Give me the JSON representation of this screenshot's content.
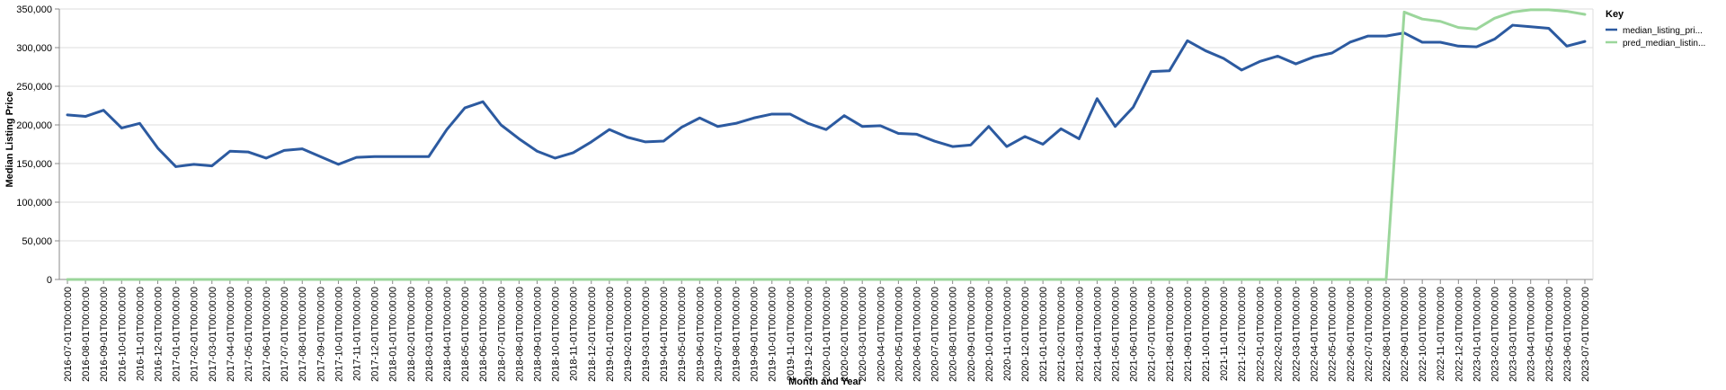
{
  "chart_data": {
    "type": "line",
    "title": "",
    "xlabel": "Month and Year",
    "ylabel": "Median Listing Price",
    "ylim": [
      0,
      350000
    ],
    "y_ticks": [
      "0",
      "50,000",
      "100,000",
      "150,000",
      "200,000",
      "250,000",
      "300,000",
      "350,000"
    ],
    "y_tick_values": [
      0,
      50000,
      100000,
      150000,
      200000,
      250000,
      300000,
      350000
    ],
    "legend_title": "Key",
    "legend_position": "right",
    "grid": true,
    "categories": [
      "2016-07-01T00:00:00",
      "2016-08-01T00:00:00",
      "2016-09-01T00:00:00",
      "2016-10-01T00:00:00",
      "2016-11-01T00:00:00",
      "2016-12-01T00:00:00",
      "2017-01-01T00:00:00",
      "2017-02-01T00:00:00",
      "2017-03-01T00:00:00",
      "2017-04-01T00:00:00",
      "2017-05-01T00:00:00",
      "2017-06-01T00:00:00",
      "2017-07-01T00:00:00",
      "2017-08-01T00:00:00",
      "2017-09-01T00:00:00",
      "2017-10-01T00:00:00",
      "2017-11-01T00:00:00",
      "2017-12-01T00:00:00",
      "2018-01-01T00:00:00",
      "2018-02-01T00:00:00",
      "2018-03-01T00:00:00",
      "2018-04-01T00:00:00",
      "2018-05-01T00:00:00",
      "2018-06-01T00:00:00",
      "2018-07-01T00:00:00",
      "2018-08-01T00:00:00",
      "2018-09-01T00:00:00",
      "2018-10-01T00:00:00",
      "2018-11-01T00:00:00",
      "2018-12-01T00:00:00",
      "2019-01-01T00:00:00",
      "2019-02-01T00:00:00",
      "2019-03-01T00:00:00",
      "2019-04-01T00:00:00",
      "2019-05-01T00:00:00",
      "2019-06-01T00:00:00",
      "2019-07-01T00:00:00",
      "2019-08-01T00:00:00",
      "2019-09-01T00:00:00",
      "2019-10-01T00:00:00",
      "2019-11-01T00:00:00",
      "2019-12-01T00:00:00",
      "2020-01-01T00:00:00",
      "2020-02-01T00:00:00",
      "2020-03-01T00:00:00",
      "2020-04-01T00:00:00",
      "2020-05-01T00:00:00",
      "2020-06-01T00:00:00",
      "2020-07-01T00:00:00",
      "2020-08-01T00:00:00",
      "2020-09-01T00:00:00",
      "2020-10-01T00:00:00",
      "2020-11-01T00:00:00",
      "2020-12-01T00:00:00",
      "2021-01-01T00:00:00",
      "2021-02-01T00:00:00",
      "2021-03-01T00:00:00",
      "2021-04-01T00:00:00",
      "2021-05-01T00:00:00",
      "2021-06-01T00:00:00",
      "2021-07-01T00:00:00",
      "2021-08-01T00:00:00",
      "2021-09-01T00:00:00",
      "2021-10-01T00:00:00",
      "2021-11-01T00:00:00",
      "2021-12-01T00:00:00",
      "2022-01-01T00:00:00",
      "2022-02-01T00:00:00",
      "2022-03-01T00:00:00",
      "2022-04-01T00:00:00",
      "2022-05-01T00:00:00",
      "2022-06-01T00:00:00",
      "2022-07-01T00:00:00",
      "2022-08-01T00:00:00",
      "2022-09-01T00:00:00",
      "2022-10-01T00:00:00",
      "2022-11-01T00:00:00",
      "2022-12-01T00:00:00",
      "2023-01-01T00:00:00",
      "2023-02-01T00:00:00",
      "2023-03-01T00:00:00",
      "2023-04-01T00:00:00",
      "2023-05-01T00:00:00",
      "2023-06-01T00:00:00",
      "2023-07-01T00:00:00"
    ],
    "series": [
      {
        "name": "median_listing_price",
        "legend_label": "median_listing_pri...",
        "color": "#2c5aa0",
        "values": [
          213000,
          211000,
          219000,
          196000,
          202000,
          170000,
          146000,
          149000,
          147000,
          166000,
          165000,
          157000,
          167000,
          169000,
          159000,
          149000,
          158000,
          159000,
          159000,
          159000,
          159000,
          194000,
          222000,
          230000,
          200000,
          182000,
          166000,
          157000,
          164000,
          178000,
          194000,
          184000,
          178000,
          179000,
          197000,
          209000,
          198000,
          202000,
          209000,
          214000,
          214000,
          202000,
          194000,
          212000,
          198000,
          199000,
          189000,
          188000,
          179000,
          172000,
          174000,
          198000,
          172000,
          185000,
          175000,
          195000,
          182000,
          234000,
          198000,
          223000,
          269000,
          270000,
          309000,
          296000,
          286000,
          271000,
          282000,
          289000,
          279000,
          288000,
          293000,
          307000,
          315000,
          315000,
          319000,
          307000,
          307000,
          302000,
          301000,
          311000,
          329000,
          327000,
          325000,
          302000,
          308000
        ]
      },
      {
        "name": "pred_median_listing_price",
        "legend_label": "pred_median_listin...",
        "color": "#9bd69b",
        "values": [
          0,
          0,
          0,
          0,
          0,
          0,
          0,
          0,
          0,
          0,
          0,
          0,
          0,
          0,
          0,
          0,
          0,
          0,
          0,
          0,
          0,
          0,
          0,
          0,
          0,
          0,
          0,
          0,
          0,
          0,
          0,
          0,
          0,
          0,
          0,
          0,
          0,
          0,
          0,
          0,
          0,
          0,
          0,
          0,
          0,
          0,
          0,
          0,
          0,
          0,
          0,
          0,
          0,
          0,
          0,
          0,
          0,
          0,
          0,
          0,
          0,
          0,
          0,
          0,
          0,
          0,
          0,
          0,
          0,
          0,
          0,
          0,
          0,
          0,
          346000,
          337000,
          334000,
          326000,
          324000,
          338000,
          346000,
          349000,
          349000,
          347000,
          343000
        ]
      }
    ]
  }
}
